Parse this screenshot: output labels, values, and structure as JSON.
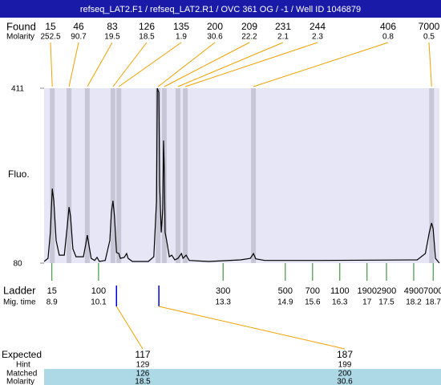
{
  "header": {
    "title": "refseq_LAT2.F1 / refseq_LAT2.R1 / OVC 361 OG / -1 / Well ID 1046879"
  },
  "chart_data": {
    "type": "line",
    "y_label": "Fluo.",
    "ylim": [
      80,
      411
    ],
    "yticks": [
      80,
      411
    ],
    "xlim": [
      8.7,
      18.86
    ],
    "trace": {
      "color": "#000000",
      "x": [
        8.7,
        8.8,
        8.86,
        8.91,
        8.95,
        9.01,
        9.09,
        9.22,
        9.3,
        9.34,
        9.38,
        9.44,
        9.52,
        9.71,
        9.77,
        9.81,
        9.85,
        9.91,
        10.0,
        10.06,
        10.12,
        10.27,
        10.39,
        10.43,
        10.47,
        10.51,
        10.56,
        10.62,
        10.66,
        10.76,
        10.82,
        10.86,
        10.97,
        11.38,
        11.52,
        11.59,
        11.61,
        11.65,
        11.67,
        11.71,
        11.75,
        11.77,
        11.79,
        11.81,
        11.85,
        11.92,
        11.98,
        12.06,
        12.14,
        12.23,
        12.27,
        12.35,
        12.43,
        12.93,
        13.75,
        14.0,
        14.08,
        14.14,
        14.37,
        15.81,
        18.29,
        18.5,
        18.6,
        18.66,
        18.7,
        18.76,
        18.86
      ],
      "y": [
        83,
        89,
        138,
        221,
        198,
        123,
        95,
        95,
        153,
        186,
        168,
        107,
        92,
        92,
        115,
        133,
        115,
        89,
        85,
        91,
        83,
        85,
        123,
        176,
        198,
        168,
        100,
        98,
        89,
        91,
        98,
        89,
        83,
        83,
        92,
        198,
        411,
        403,
        229,
        138,
        183,
        312,
        259,
        138,
        123,
        92,
        95,
        86,
        89,
        98,
        89,
        95,
        85,
        83,
        86,
        89,
        98,
        88,
        85,
        85,
        86,
        98,
        138,
        156,
        145,
        89,
        80
      ]
    },
    "found": {
      "label": "Found",
      "molarity_label": "Molarity",
      "color": "#f0a000",
      "band_color": "#c6c6d6",
      "peaks": [
        {
          "size": 15,
          "molarity": 252.5,
          "mig_time": 8.91
        },
        {
          "size": 46,
          "molarity": 90.7,
          "mig_time": 9.34
        },
        {
          "size": 83,
          "molarity": 19.5,
          "mig_time": 9.81
        },
        {
          "size": 126,
          "molarity": 18.5,
          "mig_time": 10.47
        },
        {
          "size": 135,
          "molarity": 1.9,
          "mig_time": 10.62
        },
        {
          "size": 200,
          "molarity": 30.6,
          "mig_time": 11.63
        },
        {
          "size": 209,
          "molarity": 22.2,
          "mig_time": 11.79
        },
        {
          "size": 231,
          "molarity": 2.1,
          "mig_time": 12.14
        },
        {
          "size": 244,
          "molarity": 2.3,
          "mig_time": 12.33
        },
        {
          "size": 406,
          "molarity": 0.8,
          "mig_time": 14.08
        },
        {
          "size": 7000,
          "molarity": 0.5,
          "mig_time": 18.66
        }
      ]
    },
    "ladder": {
      "label": "Ladder",
      "mig_time_label": "Mig. time",
      "color": "#208020",
      "sizes": [
        15,
        100,
        300,
        500,
        700,
        1100,
        1900,
        2900,
        4900,
        7000
      ],
      "mig_times": [
        8.9,
        10.1,
        13.3,
        14.9,
        15.6,
        16.3,
        17,
        17.5,
        18.2,
        18.7
      ]
    },
    "matches": {
      "expected_label": "Expected",
      "hint_label": "Hint",
      "matched_label": "Matched",
      "molarity_label": "Molarity",
      "color": "#0000e0",
      "columns": [
        {
          "expected": 117,
          "hint": 129,
          "matched": 126,
          "molarity": 18.5,
          "mig_time": 10.56
        },
        {
          "expected": 187,
          "hint": 199,
          "matched": 200,
          "molarity": 30.6,
          "mig_time": 11.65
        }
      ]
    }
  }
}
